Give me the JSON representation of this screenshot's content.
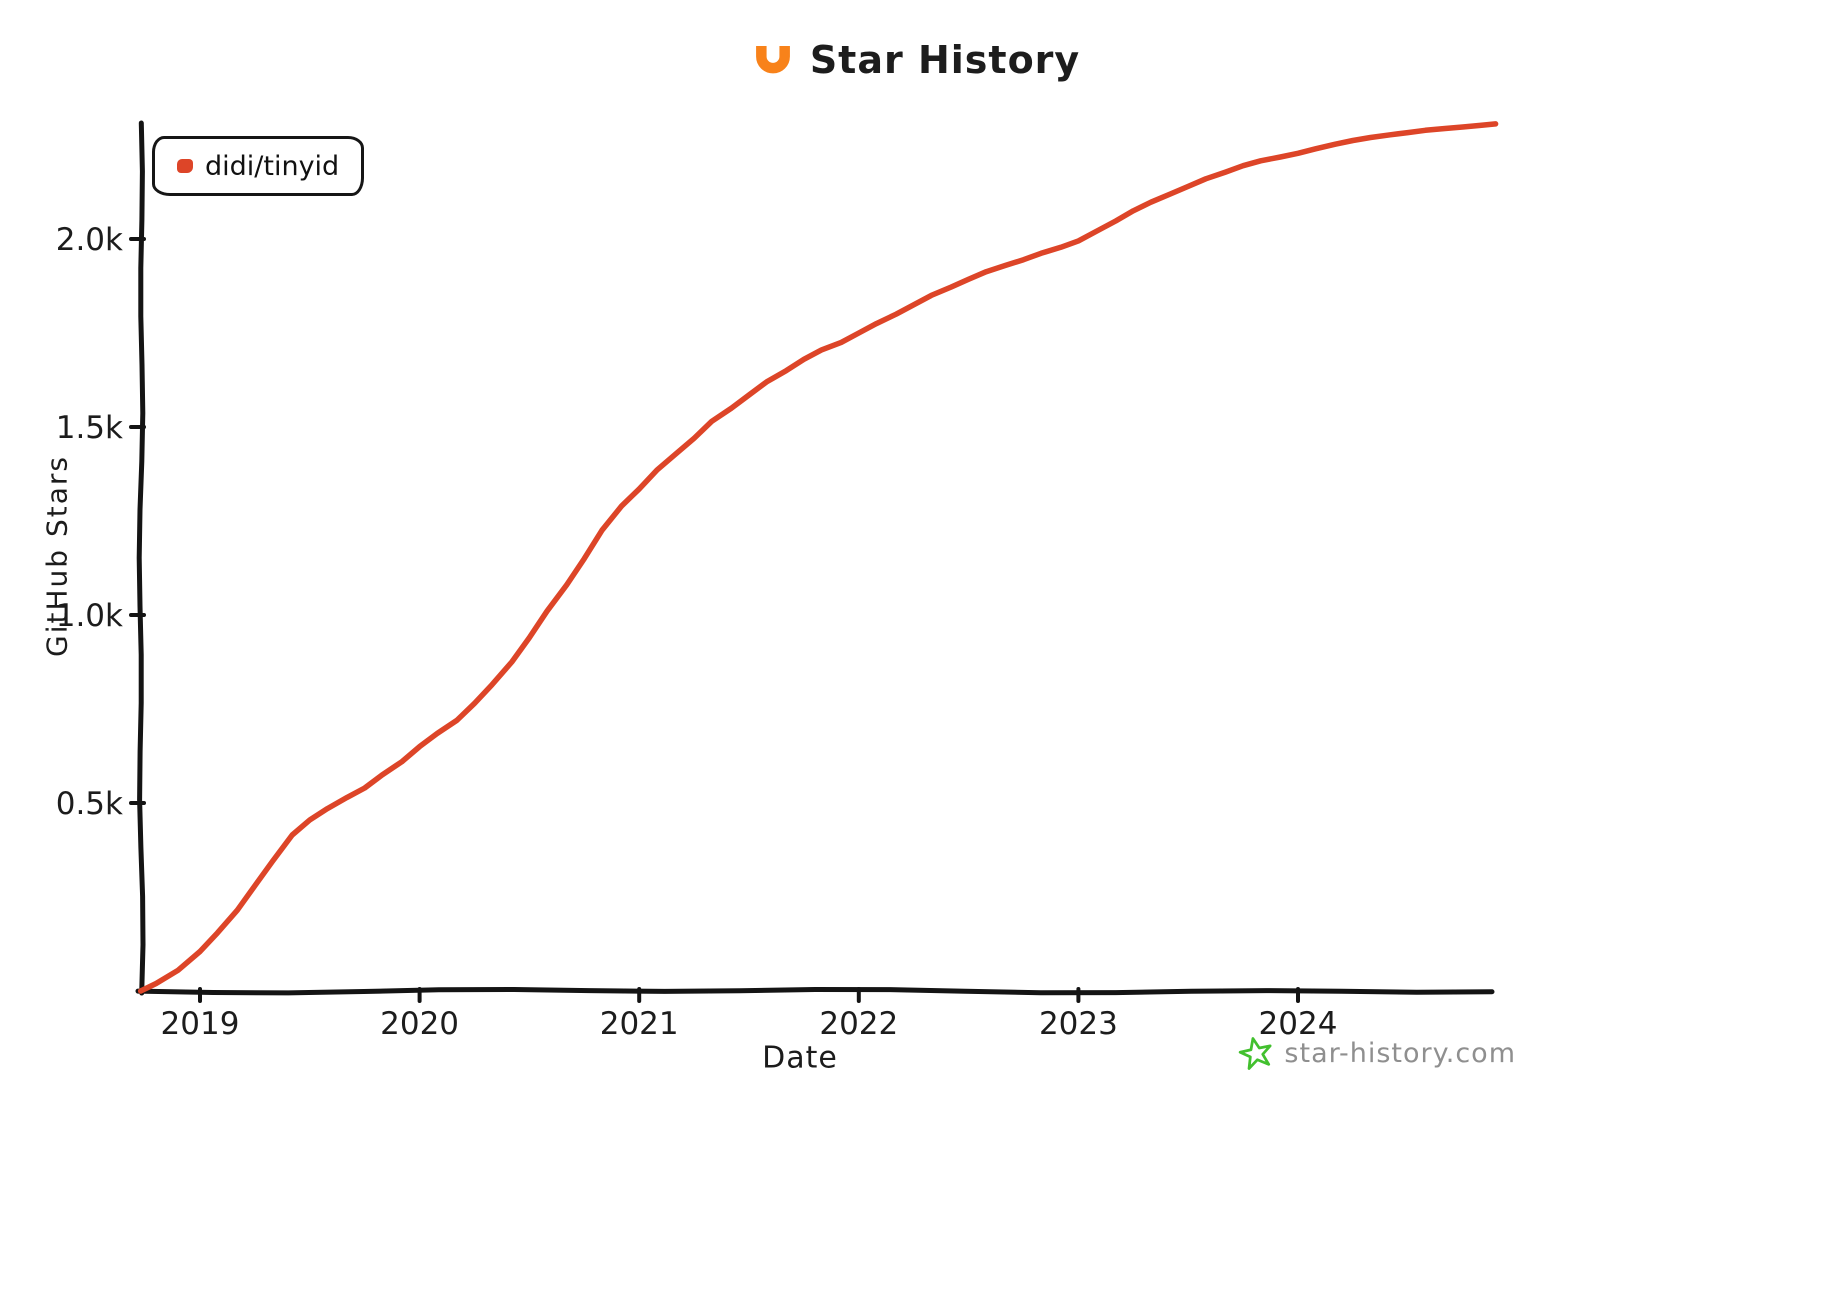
{
  "header": {
    "title": "Star History"
  },
  "legend": {
    "label": "didi/tinyid"
  },
  "axes": {
    "y_label": "GitHub Stars",
    "x_label": "Date",
    "y_ticks": [
      {
        "value": 500,
        "label": "0.5k"
      },
      {
        "value": 1000,
        "label": "1.0k"
      },
      {
        "value": 1500,
        "label": "1.5k"
      },
      {
        "value": 2000,
        "label": "2.0k"
      }
    ],
    "x_ticks": [
      {
        "value": 2019,
        "label": "2019"
      },
      {
        "value": 2020,
        "label": "2020"
      },
      {
        "value": 2021,
        "label": "2021"
      },
      {
        "value": 2022,
        "label": "2022"
      },
      {
        "value": 2023,
        "label": "2023"
      },
      {
        "value": 2024,
        "label": "2024"
      }
    ]
  },
  "watermark": {
    "text": "star-history.com"
  },
  "colors": {
    "line": "#dd4528",
    "logo": "#f8821a",
    "axis": "#141414",
    "watermark_star": "#42c02e",
    "watermark_text": "#8f8f8f"
  },
  "chart_data": {
    "type": "line",
    "title": "Star History",
    "xlabel": "Date",
    "ylabel": "GitHub Stars",
    "xlim": [
      2018.7,
      2024.95
    ],
    "ylim": [
      0,
      2350
    ],
    "x_ticks": [
      2019,
      2020,
      2021,
      2022,
      2023,
      2024
    ],
    "y_ticks": [
      500,
      1000,
      1500,
      2000
    ],
    "grid": false,
    "legend_position": "top-left",
    "series": [
      {
        "name": "didi/tinyid",
        "color": "#dd4528",
        "points": [
          [
            2018.73,
            0
          ],
          [
            2018.8,
            20
          ],
          [
            2018.9,
            55
          ],
          [
            2019.0,
            105
          ],
          [
            2019.08,
            155
          ],
          [
            2019.17,
            215
          ],
          [
            2019.25,
            280
          ],
          [
            2019.33,
            345
          ],
          [
            2019.42,
            415
          ],
          [
            2019.5,
            455
          ],
          [
            2019.58,
            485
          ],
          [
            2019.67,
            515
          ],
          [
            2019.75,
            540
          ],
          [
            2019.83,
            575
          ],
          [
            2019.92,
            610
          ],
          [
            2020.0,
            650
          ],
          [
            2020.08,
            685
          ],
          [
            2020.17,
            720
          ],
          [
            2020.25,
            765
          ],
          [
            2020.33,
            815
          ],
          [
            2020.42,
            875
          ],
          [
            2020.5,
            940
          ],
          [
            2020.58,
            1010
          ],
          [
            2020.67,
            1080
          ],
          [
            2020.75,
            1150
          ],
          [
            2020.83,
            1225
          ],
          [
            2020.92,
            1290
          ],
          [
            2021.0,
            1335
          ],
          [
            2021.08,
            1385
          ],
          [
            2021.17,
            1430
          ],
          [
            2021.25,
            1470
          ],
          [
            2021.33,
            1515
          ],
          [
            2021.42,
            1550
          ],
          [
            2021.5,
            1585
          ],
          [
            2021.58,
            1620
          ],
          [
            2021.67,
            1650
          ],
          [
            2021.75,
            1680
          ],
          [
            2021.83,
            1705
          ],
          [
            2021.92,
            1725
          ],
          [
            2022.0,
            1750
          ],
          [
            2022.08,
            1775
          ],
          [
            2022.17,
            1800
          ],
          [
            2022.25,
            1825
          ],
          [
            2022.33,
            1850
          ],
          [
            2022.42,
            1872
          ],
          [
            2022.5,
            1893
          ],
          [
            2022.58,
            1913
          ],
          [
            2022.67,
            1930
          ],
          [
            2022.75,
            1945
          ],
          [
            2022.83,
            1962
          ],
          [
            2022.92,
            1978
          ],
          [
            2023.0,
            1995
          ],
          [
            2023.08,
            2020
          ],
          [
            2023.17,
            2048
          ],
          [
            2023.25,
            2075
          ],
          [
            2023.33,
            2098
          ],
          [
            2023.42,
            2120
          ],
          [
            2023.5,
            2140
          ],
          [
            2023.58,
            2160
          ],
          [
            2023.67,
            2178
          ],
          [
            2023.75,
            2195
          ],
          [
            2023.83,
            2208
          ],
          [
            2023.92,
            2218
          ],
          [
            2024.0,
            2228
          ],
          [
            2024.08,
            2240
          ],
          [
            2024.17,
            2252
          ],
          [
            2024.25,
            2262
          ],
          [
            2024.33,
            2270
          ],
          [
            2024.42,
            2277
          ],
          [
            2024.5,
            2283
          ],
          [
            2024.58,
            2289
          ],
          [
            2024.67,
            2294
          ],
          [
            2024.75,
            2298
          ],
          [
            2024.83,
            2302
          ],
          [
            2024.9,
            2306
          ]
        ]
      }
    ]
  }
}
